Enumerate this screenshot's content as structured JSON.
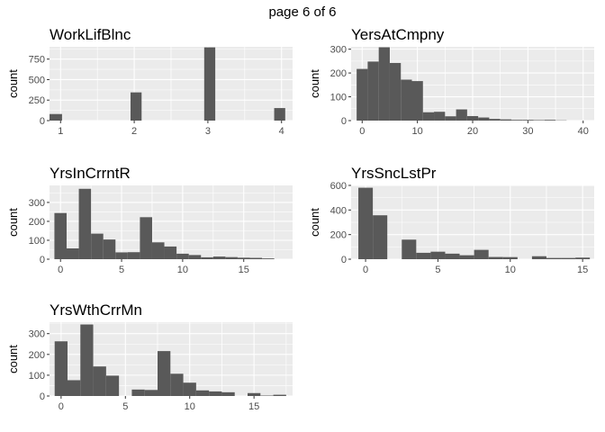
{
  "page_label": "page 6 of 6",
  "chart_data": [
    {
      "type": "bar",
      "title": "WorkLifBlnc",
      "xlabel": "",
      "ylabel": "count",
      "binwidth": 0.1,
      "xlim": [
        0.85,
        4.15
      ],
      "ylim": [
        0,
        900
      ],
      "xticks": [
        1,
        2,
        3,
        4
      ],
      "yticks": [
        0,
        250,
        500,
        750
      ],
      "bins": [
        {
          "x0": 0.85,
          "x1": 1.02,
          "count": 80
        },
        {
          "x0": 1.95,
          "x1": 2.1,
          "count": 344
        },
        {
          "x0": 2.95,
          "x1": 3.1,
          "count": 893
        },
        {
          "x0": 3.9,
          "x1": 4.05,
          "count": 153
        }
      ]
    },
    {
      "type": "bar",
      "title": "YersAtCmpny",
      "xlabel": "",
      "ylabel": "count",
      "binwidth": 2,
      "xlim": [
        -2,
        42
      ],
      "ylim": [
        0,
        310
      ],
      "xticks": [
        0,
        10,
        20,
        30,
        40
      ],
      "yticks": [
        0,
        100,
        200,
        300
      ],
      "bins": [
        {
          "x0": -1,
          "x1": 1,
          "count": 217
        },
        {
          "x0": 1,
          "x1": 3,
          "count": 248
        },
        {
          "x0": 3,
          "x1": 5,
          "count": 308
        },
        {
          "x0": 5,
          "x1": 7,
          "count": 242
        },
        {
          "x0": 7,
          "x1": 9,
          "count": 172
        },
        {
          "x0": 9,
          "x1": 11,
          "count": 166
        },
        {
          "x0": 11,
          "x1": 13,
          "count": 35
        },
        {
          "x0": 13,
          "x1": 15,
          "count": 37
        },
        {
          "x0": 15,
          "x1": 17,
          "count": 18
        },
        {
          "x0": 17,
          "x1": 19,
          "count": 47
        },
        {
          "x0": 19,
          "x1": 21,
          "count": 19
        },
        {
          "x0": 21,
          "x1": 23,
          "count": 13
        },
        {
          "x0": 23,
          "x1": 25,
          "count": 7
        },
        {
          "x0": 25,
          "x1": 27,
          "count": 5
        },
        {
          "x0": 27,
          "x1": 29,
          "count": 3
        },
        {
          "x0": 29,
          "x1": 31,
          "count": 3
        },
        {
          "x0": 31,
          "x1": 33,
          "count": 2
        },
        {
          "x0": 33,
          "x1": 35,
          "count": 3
        },
        {
          "x0": 35,
          "x1": 37,
          "count": 1
        }
      ]
    },
    {
      "type": "bar",
      "title": "YrsInCrrntR",
      "xlabel": "",
      "ylabel": "count",
      "binwidth": 1,
      "xlim": [
        -0.9,
        19.0
      ],
      "ylim": [
        0,
        390
      ],
      "xticks": [
        0,
        5,
        10,
        15
      ],
      "yticks": [
        0,
        100,
        200,
        300
      ],
      "bins": [
        {
          "x0": -0.5,
          "x1": 0.5,
          "count": 244
        },
        {
          "x0": 0.5,
          "x1": 1.5,
          "count": 57
        },
        {
          "x0": 1.5,
          "x1": 2.5,
          "count": 372
        },
        {
          "x0": 2.5,
          "x1": 3.5,
          "count": 135
        },
        {
          "x0": 3.5,
          "x1": 4.5,
          "count": 104
        },
        {
          "x0": 4.5,
          "x1": 5.5,
          "count": 36
        },
        {
          "x0": 5.5,
          "x1": 6.5,
          "count": 37
        },
        {
          "x0": 6.5,
          "x1": 7.5,
          "count": 222
        },
        {
          "x0": 7.5,
          "x1": 8.5,
          "count": 89
        },
        {
          "x0": 8.5,
          "x1": 9.5,
          "count": 67
        },
        {
          "x0": 9.5,
          "x1": 10.5,
          "count": 29
        },
        {
          "x0": 10.5,
          "x1": 11.5,
          "count": 22
        },
        {
          "x0": 11.5,
          "x1": 12.5,
          "count": 10
        },
        {
          "x0": 12.5,
          "x1": 13.5,
          "count": 14
        },
        {
          "x0": 13.5,
          "x1": 14.5,
          "count": 11
        },
        {
          "x0": 14.5,
          "x1": 15.5,
          "count": 8
        },
        {
          "x0": 15.5,
          "x1": 16.5,
          "count": 7
        },
        {
          "x0": 16.5,
          "x1": 17.5,
          "count": 4
        }
      ]
    },
    {
      "type": "bar",
      "title": "YrsSncLstPr",
      "xlabel": "",
      "ylabel": "count",
      "binwidth": 1,
      "xlim": [
        -1.0,
        15.8
      ],
      "ylim": [
        0,
        600
      ],
      "xticks": [
        0,
        5,
        10,
        15
      ],
      "yticks": [
        0,
        200,
        400,
        600
      ],
      "bins": [
        {
          "x0": -0.5,
          "x1": 0.5,
          "count": 581
        },
        {
          "x0": 0.5,
          "x1": 1.5,
          "count": 357
        },
        {
          "x0": 1.5,
          "x1": 2.5,
          "count": 0
        },
        {
          "x0": 2.5,
          "x1": 3.5,
          "count": 159
        },
        {
          "x0": 3.5,
          "x1": 4.5,
          "count": 52
        },
        {
          "x0": 4.5,
          "x1": 5.5,
          "count": 61
        },
        {
          "x0": 5.5,
          "x1": 6.5,
          "count": 45
        },
        {
          "x0": 6.5,
          "x1": 7.5,
          "count": 32
        },
        {
          "x0": 7.5,
          "x1": 8.5,
          "count": 76
        },
        {
          "x0": 8.5,
          "x1": 9.5,
          "count": 18
        },
        {
          "x0": 9.5,
          "x1": 10.5,
          "count": 17
        },
        {
          "x0": 10.5,
          "x1": 11.5,
          "count": 0
        },
        {
          "x0": 11.5,
          "x1": 12.5,
          "count": 24
        },
        {
          "x0": 12.5,
          "x1": 13.5,
          "count": 10
        },
        {
          "x0": 13.5,
          "x1": 14.5,
          "count": 10
        },
        {
          "x0": 14.5,
          "x1": 15.5,
          "count": 13
        }
      ]
    },
    {
      "type": "bar",
      "title": "YrsWthCrrMn",
      "xlabel": "",
      "ylabel": "count",
      "binwidth": 1,
      "xlim": [
        -0.9,
        18.0
      ],
      "ylim": [
        0,
        355
      ],
      "xticks": [
        0,
        5,
        10,
        15
      ],
      "yticks": [
        0,
        100,
        200,
        300
      ],
      "bins": [
        {
          "x0": -0.5,
          "x1": 0.5,
          "count": 263
        },
        {
          "x0": 0.5,
          "x1": 1.5,
          "count": 76
        },
        {
          "x0": 1.5,
          "x1": 2.5,
          "count": 344
        },
        {
          "x0": 2.5,
          "x1": 3.5,
          "count": 142
        },
        {
          "x0": 3.5,
          "x1": 4.5,
          "count": 98
        },
        {
          "x0": 4.5,
          "x1": 5.5,
          "count": 0
        },
        {
          "x0": 5.5,
          "x1": 6.5,
          "count": 31
        },
        {
          "x0": 6.5,
          "x1": 7.5,
          "count": 29
        },
        {
          "x0": 7.5,
          "x1": 8.5,
          "count": 216
        },
        {
          "x0": 8.5,
          "x1": 9.5,
          "count": 107
        },
        {
          "x0": 9.5,
          "x1": 10.5,
          "count": 64
        },
        {
          "x0": 10.5,
          "x1": 11.5,
          "count": 27
        },
        {
          "x0": 11.5,
          "x1": 12.5,
          "count": 22
        },
        {
          "x0": 12.5,
          "x1": 13.5,
          "count": 18
        },
        {
          "x0": 13.5,
          "x1": 14.5,
          "count": 0
        },
        {
          "x0": 14.5,
          "x1": 15.5,
          "count": 14
        },
        {
          "x0": 15.5,
          "x1": 16.5,
          "count": 2
        },
        {
          "x0": 16.5,
          "x1": 17.5,
          "count": 6
        }
      ]
    }
  ]
}
